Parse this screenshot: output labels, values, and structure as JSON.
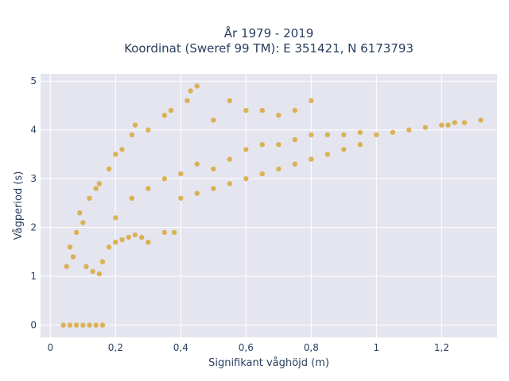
{
  "chart_data": {
    "type": "scatter",
    "title": "År 1979 - 2019",
    "subtitle": "Koordinat (Sweref 99 TM): E 351421, N 6173793",
    "xlabel": "Signifikant våghöjd (m)",
    "ylabel": "Vågperiod (s)",
    "xlim": [
      -0.03,
      1.37
    ],
    "ylim": [
      -0.25,
      5.15
    ],
    "x_ticks": [
      0,
      0.2,
      0.4,
      0.6,
      0.8,
      1,
      1.2
    ],
    "x_tick_labels": [
      "0",
      "0,2",
      "0,4",
      "0,6",
      "0,8",
      "1",
      "1,2"
    ],
    "y_ticks": [
      0,
      1,
      2,
      3,
      4,
      5
    ],
    "y_tick_labels": [
      "0",
      "1",
      "2",
      "3",
      "4",
      "5"
    ],
    "grid": true,
    "marker_color": "#d4a020",
    "background_color": "#e5e5f0",
    "points": [
      [
        0.04,
        0
      ],
      [
        0.06,
        0
      ],
      [
        0.08,
        0
      ],
      [
        0.1,
        0
      ],
      [
        0.12,
        0
      ],
      [
        0.14,
        0
      ],
      [
        0.16,
        0
      ],
      [
        0.05,
        1.2
      ],
      [
        0.06,
        1.6
      ],
      [
        0.07,
        1.4
      ],
      [
        0.08,
        1.9
      ],
      [
        0.09,
        2.3
      ],
      [
        0.1,
        2.1
      ],
      [
        0.11,
        1.2
      ],
      [
        0.12,
        2.6
      ],
      [
        0.13,
        1.1
      ],
      [
        0.14,
        2.8
      ],
      [
        0.15,
        1.05
      ],
      [
        0.16,
        1.3
      ],
      [
        0.18,
        1.6
      ],
      [
        0.2,
        1.7
      ],
      [
        0.22,
        1.75
      ],
      [
        0.24,
        1.8
      ],
      [
        0.26,
        1.85
      ],
      [
        0.28,
        1.8
      ],
      [
        0.3,
        1.7
      ],
      [
        0.35,
        1.9
      ],
      [
        0.15,
        2.9
      ],
      [
        0.18,
        3.2
      ],
      [
        0.2,
        3.5
      ],
      [
        0.22,
        3.6
      ],
      [
        0.25,
        3.9
      ],
      [
        0.26,
        4.1
      ],
      [
        0.3,
        4.0
      ],
      [
        0.35,
        4.3
      ],
      [
        0.37,
        4.4
      ],
      [
        0.42,
        4.6
      ],
      [
        0.45,
        4.9
      ],
      [
        0.43,
        4.8
      ],
      [
        0.5,
        4.2
      ],
      [
        0.55,
        4.6
      ],
      [
        0.6,
        4.4
      ],
      [
        0.65,
        4.4
      ],
      [
        0.7,
        4.3
      ],
      [
        0.8,
        4.6
      ],
      [
        0.75,
        4.4
      ],
      [
        0.2,
        2.2
      ],
      [
        0.25,
        2.6
      ],
      [
        0.3,
        2.8
      ],
      [
        0.35,
        3.0
      ],
      [
        0.4,
        3.1
      ],
      [
        0.45,
        3.3
      ],
      [
        0.5,
        3.2
      ],
      [
        0.55,
        3.4
      ],
      [
        0.6,
        3.6
      ],
      [
        0.65,
        3.7
      ],
      [
        0.7,
        3.7
      ],
      [
        0.75,
        3.8
      ],
      [
        0.8,
        3.9
      ],
      [
        0.85,
        3.9
      ],
      [
        0.9,
        3.9
      ],
      [
        0.95,
        3.95
      ],
      [
        1.0,
        3.9
      ],
      [
        1.05,
        3.95
      ],
      [
        1.1,
        4.0
      ],
      [
        1.15,
        4.05
      ],
      [
        1.2,
        4.1
      ],
      [
        1.22,
        4.1
      ],
      [
        1.24,
        4.15
      ],
      [
        1.27,
        4.15
      ],
      [
        1.32,
        4.2
      ],
      [
        0.4,
        2.6
      ],
      [
        0.45,
        2.7
      ],
      [
        0.5,
        2.8
      ],
      [
        0.55,
        2.9
      ],
      [
        0.6,
        3.0
      ],
      [
        0.65,
        3.1
      ],
      [
        0.7,
        3.2
      ],
      [
        0.75,
        3.3
      ],
      [
        0.8,
        3.4
      ],
      [
        0.85,
        3.5
      ],
      [
        0.9,
        3.6
      ],
      [
        0.95,
        3.7
      ],
      [
        0.38,
        1.9
      ]
    ]
  }
}
